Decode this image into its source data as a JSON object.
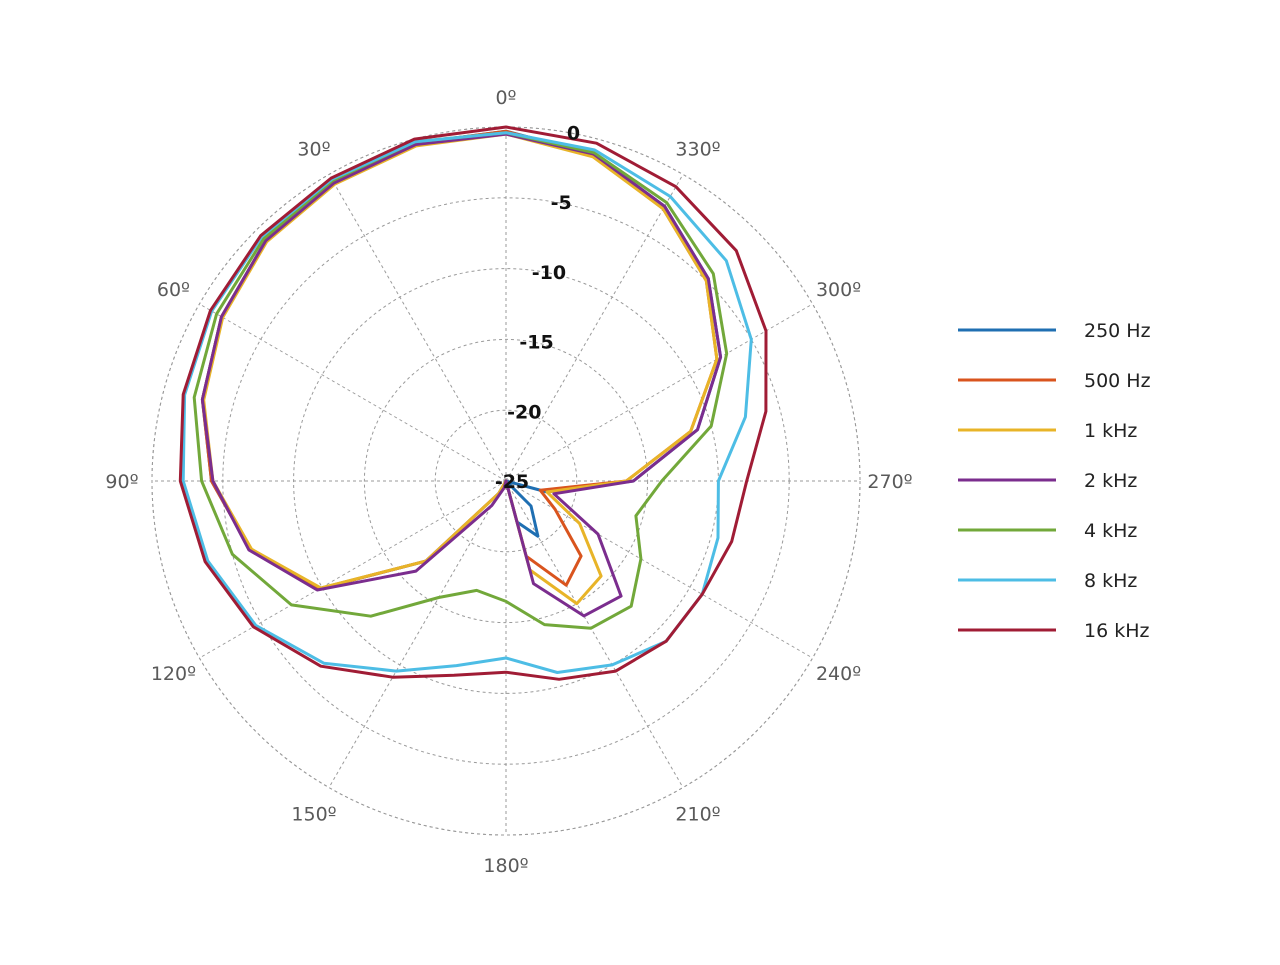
{
  "chart_data": {
    "type": "polar-line",
    "title": "",
    "theta_direction": "counterclockwise",
    "theta_zero": "top",
    "theta_ticks": [
      "0º",
      "30º",
      "60º",
      "90º",
      "120º",
      "150º",
      "180º",
      "210º",
      "240º",
      "270º",
      "300º",
      "330º"
    ],
    "r_ticks": [
      "0",
      "-5",
      "-10",
      "-15",
      "-20",
      "-25"
    ],
    "r_range": [
      -25,
      0
    ],
    "grid": true,
    "legend_position": "right",
    "angles": [
      0,
      15,
      30,
      45,
      60,
      75,
      90,
      105,
      120,
      135,
      150,
      165,
      180,
      195,
      210,
      225,
      240,
      255,
      270,
      285,
      300,
      315,
      330,
      345
    ],
    "series": [
      {
        "name": "250 Hz",
        "color": "#1f6fb2",
        "values": [
          -0.3,
          -0.3,
          -0.6,
          -1.0,
          -1.8,
          -2.8,
          -4.2,
          -6.3,
          -9.8,
          -17.0,
          -24.0,
          -25.0,
          -25.0,
          -22.0,
          -20.5,
          -22.5,
          -25.0,
          -22.0,
          -16.0,
          -11.0,
          -7.5,
          -4.8,
          -2.6,
          -1.1
        ]
      },
      {
        "name": "500 Hz",
        "color": "#d9541e",
        "values": [
          -0.3,
          -0.3,
          -0.6,
          -1.0,
          -1.8,
          -2.8,
          -4.2,
          -6.3,
          -9.8,
          -17.0,
          -24.0,
          -25.0,
          -25.0,
          -19.5,
          -16.5,
          -17.5,
          -21.0,
          -22.5,
          -16.5,
          -11.5,
          -7.8,
          -5.0,
          -2.8,
          -1.2
        ]
      },
      {
        "name": "1 kHz",
        "color": "#e8b428",
        "values": [
          -0.5,
          -0.5,
          -0.8,
          -1.1,
          -1.9,
          -2.9,
          -4.3,
          -6.4,
          -9.9,
          -17.0,
          -24.0,
          -25.0,
          -25.0,
          -18.5,
          -15.0,
          -15.5,
          -19.0,
          -22.0,
          -16.5,
          -11.5,
          -7.8,
          -5.0,
          -2.8,
          -1.3
        ]
      },
      {
        "name": "2 kHz",
        "color": "#7b2d8e",
        "values": [
          -0.5,
          -0.4,
          -0.7,
          -1.0,
          -1.8,
          -2.8,
          -4.3,
          -6.2,
          -9.6,
          -16.0,
          -23.0,
          -24.5,
          -25.0,
          -17.5,
          -14.0,
          -13.5,
          -17.5,
          -21.5,
          -16.0,
          -11.0,
          -7.5,
          -4.8,
          -2.6,
          -1.1
        ]
      },
      {
        "name": "4 kHz",
        "color": "#72a83a",
        "values": [
          -0.4,
          -0.2,
          -0.5,
          -0.8,
          -1.4,
          -2.2,
          -3.5,
          -5.0,
          -7.5,
          -11.5,
          -15.5,
          -17.0,
          -16.5,
          -14.5,
          -13.0,
          -12.5,
          -14.0,
          -15.5,
          -14.0,
          -10.0,
          -7.0,
          -4.3,
          -2.3,
          -1.0
        ]
      },
      {
        "name": "8 kHz",
        "color": "#4dbde5",
        "values": [
          -0.4,
          -0.2,
          -0.4,
          -0.6,
          -1.0,
          -1.5,
          -2.2,
          -3.2,
          -4.6,
          -6.8,
          -9.5,
          -11.5,
          -12.5,
          -11.0,
          -10.0,
          -9.0,
          -9.0,
          -9.5,
          -10.0,
          -7.5,
          -5.0,
          -3.0,
          -1.8,
          -0.8
        ]
      },
      {
        "name": "16 kHz",
        "color": "#a01c35",
        "values": [
          0.0,
          0.0,
          -0.3,
          -0.5,
          -0.9,
          -1.4,
          -2.0,
          -3.0,
          -4.4,
          -6.5,
          -9.0,
          -10.8,
          -11.5,
          -10.5,
          -9.5,
          -9.0,
          -9.0,
          -8.5,
          -8.0,
          -6.0,
          -3.8,
          -2.0,
          -1.0,
          -0.3
        ]
      }
    ]
  }
}
